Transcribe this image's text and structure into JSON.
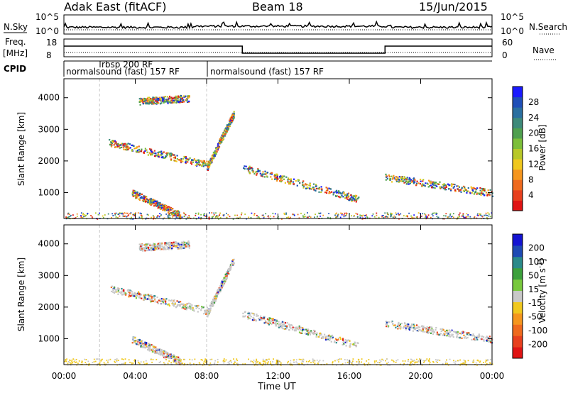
{
  "header": {
    "radar": "Adak East (fitACF)",
    "beam": "Beam 18",
    "date": "15/Jun/2015"
  },
  "noise_panel": {
    "left_label": "N.Sky",
    "right_label": "N.Search",
    "left_ticks": [
      "10^5",
      "10^0"
    ],
    "right_ticks": [
      "10^5",
      "10^0"
    ]
  },
  "freq_panel": {
    "left_label_1": "Freq.",
    "left_label_2": "[MHz]",
    "right_label": "Nave",
    "left_ticks": [
      "18",
      "8"
    ],
    "right_ticks": [
      "60",
      "0"
    ]
  },
  "cpid_panel": {
    "label": "CPID",
    "programs": [
      {
        "name": "normalsound (fast) 157 RF",
        "start": 0,
        "end": 8
      },
      {
        "name": "rbsp 200 RF",
        "start": 2,
        "end": 8
      },
      {
        "name": "normalsound (fast) 157 RF",
        "start": 8,
        "end": 24
      }
    ]
  },
  "time_axis": {
    "label": "Time UT",
    "ticks": [
      "00:00",
      "04:00",
      "08:00",
      "12:00",
      "16:00",
      "20:00",
      "00:00"
    ]
  },
  "chart_data": [
    {
      "type": "heatmap",
      "title": "",
      "xlabel": "Time UT",
      "ylabel": "Slant Range [km]",
      "xlim": [
        0,
        24
      ],
      "ylim": [
        180,
        4600
      ],
      "y_ticks": [
        "1000",
        "2000",
        "3000",
        "4000"
      ],
      "colorbar": {
        "label": "Power [dB]",
        "ticks": [
          "4",
          "8",
          "12",
          "16",
          "20",
          "24",
          "28"
        ],
        "colors": [
          "#1a1aff",
          "#1f4fb8",
          "#2a6fa0",
          "#3d8a7a",
          "#4fa04f",
          "#7cbf3a",
          "#b8c828",
          "#f0c81e",
          "#f5961e",
          "#ef6a1e",
          "#e8401e",
          "#e01414"
        ]
      },
      "features": [
        {
          "desc": "echo arc",
          "t_start": 2.5,
          "t_end": 8.0,
          "range_start": 2600,
          "range_end": 1900
        },
        {
          "desc": "upper echo",
          "t_start": 4.2,
          "t_end": 7.0,
          "range_start": 3900,
          "range_end": 4000
        },
        {
          "desc": "lower echo",
          "t_start": 3.8,
          "t_end": 6.5,
          "range_start": 1000,
          "range_end": 300
        },
        {
          "desc": "diagonal band",
          "t_start": 10.0,
          "t_end": 16.5,
          "range_start": 1800,
          "range_end": 800
        },
        {
          "desc": "late bands",
          "t_start": 18.0,
          "t_end": 24.0,
          "range_start": 1500,
          "range_end": 1000
        },
        {
          "desc": "ground scatter rise",
          "t_start": 8.0,
          "t_end": 9.5,
          "range_start": 1800,
          "range_end": 3500
        }
      ]
    },
    {
      "type": "heatmap",
      "title": "",
      "xlabel": "Time UT",
      "ylabel": "Slant Range [km]",
      "xlim": [
        0,
        24
      ],
      "ylim": [
        180,
        4600
      ],
      "y_ticks": [
        "1000",
        "2000",
        "3000",
        "4000"
      ],
      "colorbar": {
        "label": "Velocity [m s^-1]",
        "ticks": [
          "200",
          "100",
          "50",
          "15",
          "-15",
          "-50",
          "-100",
          "-200"
        ],
        "colors": [
          "#1414d2",
          "#1e4ab4",
          "#2a8a8a",
          "#3ca03c",
          "#78c83c",
          "#c8c8c8",
          "#f0c81e",
          "#f5961e",
          "#ef6a1e",
          "#e8401e",
          "#e01414"
        ]
      }
    }
  ]
}
